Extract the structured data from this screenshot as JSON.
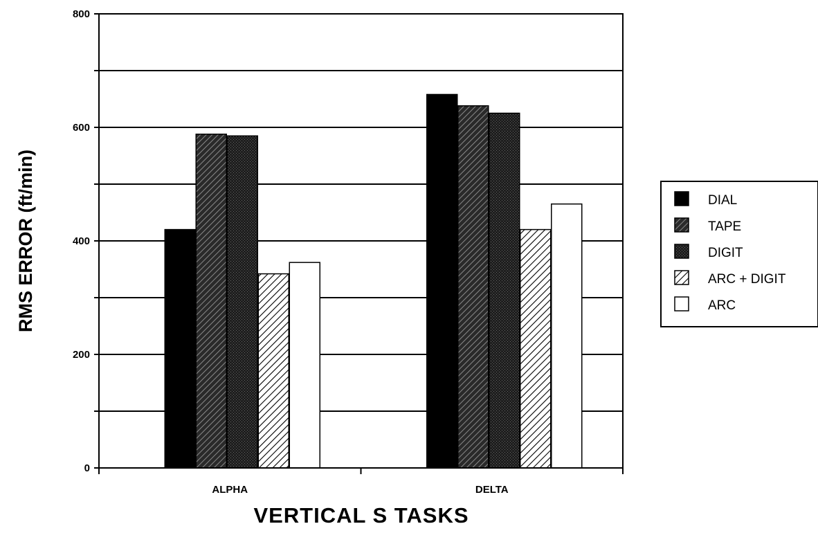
{
  "chart_data": {
    "type": "bar",
    "categories": [
      "ALPHA",
      "DELTA"
    ],
    "series": [
      {
        "name": "DIAL",
        "values": [
          420,
          658
        ]
      },
      {
        "name": "TAPE",
        "values": [
          588,
          638
        ]
      },
      {
        "name": "DIGIT",
        "values": [
          585,
          625
        ]
      },
      {
        "name": "ARC + DIGIT",
        "values": [
          342,
          420
        ]
      },
      {
        "name": "ARC",
        "values": [
          362,
          465
        ]
      }
    ],
    "xlabel": "VERTICAL S TASKS",
    "ylabel": "RMS ERROR (ft/min)",
    "ylim": [
      0,
      800
    ],
    "yticks": [
      0,
      200,
      400,
      600,
      800
    ],
    "grid": true,
    "legend": "right",
    "series_fills": [
      "solid-black",
      "dark-hatch",
      "dark-speckle",
      "light-hatch",
      "white"
    ]
  }
}
